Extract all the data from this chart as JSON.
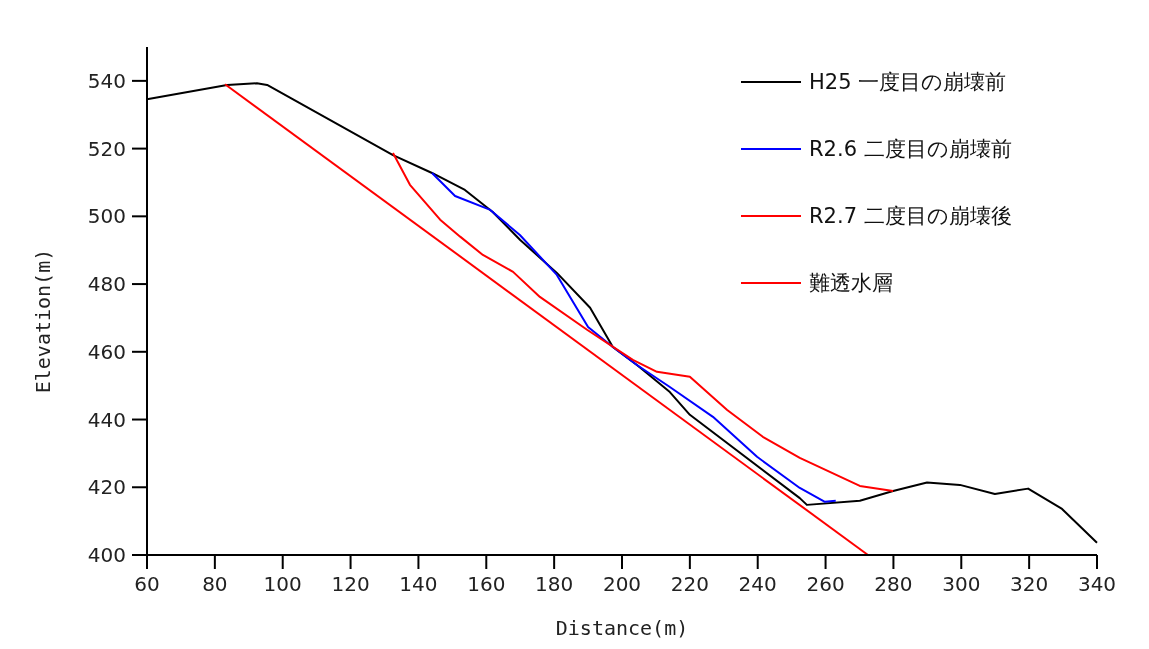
{
  "chart_data": {
    "type": "line",
    "xlabel": "Distance(m)",
    "ylabel": "Elevation(m)",
    "xlim": [
      60,
      340
    ],
    "ylim": [
      400,
      550
    ],
    "xticks": [
      60,
      80,
      100,
      120,
      140,
      160,
      180,
      200,
      220,
      240,
      260,
      280,
      300,
      320,
      340
    ],
    "yticks": [
      400,
      420,
      440,
      460,
      480,
      500,
      520,
      540
    ],
    "legend": "top right",
    "grid": false,
    "marker": "none",
    "series": [
      {
        "name": "H25  一度目の崩壊前",
        "color": "#000000",
        "x": [
          60,
          83.6,
          92.4,
          95.4,
          132.5,
          144,
          153.7,
          161.9,
          170,
          180.8,
          190.6,
          197.3,
          204.4,
          214.1,
          220,
          252.4,
          254.5,
          270.1,
          279.9,
          289.9,
          299.6,
          309.9,
          319.7,
          329.7,
          340
        ],
        "values": [
          534.6,
          538.8,
          539.3,
          538.8,
          518.1,
          512.8,
          507.8,
          501.3,
          493,
          483.3,
          473,
          461.4,
          456.1,
          448.1,
          441.4,
          416.8,
          414.8,
          416,
          418.9,
          421.4,
          420.7,
          418,
          419.6,
          413.6,
          403.6
        ]
      },
      {
        "name": "R2.6  二度目の崩壊前",
        "color": "#0000ff",
        "x": [
          144,
          150.8,
          161,
          169.9,
          180.8,
          190,
          197.3,
          204.4,
          214.1,
          226.8,
          239.8,
          252.4,
          259.8,
          263
        ],
        "values": [
          512.8,
          506,
          502,
          494.5,
          482.7,
          467.3,
          461.4,
          456.1,
          449.6,
          440.8,
          429,
          419.8,
          415.7,
          416
        ]
      },
      {
        "name": "R2.7  二度目の崩壊後",
        "color": "#ff0000",
        "x": [
          132.5,
          137.5,
          146.4,
          152.3,
          159,
          167.9,
          175.8,
          189.7,
          203.2,
          210.3,
          220,
          231,
          241.5,
          252.4,
          270.1,
          279.9
        ],
        "values": [
          518.7,
          509.3,
          499,
          494,
          488.6,
          483.6,
          476.2,
          466.5,
          457.6,
          454.1,
          452.6,
          442.8,
          434.9,
          428.7,
          420.4,
          418.9
        ]
      },
      {
        "name": "難透水層",
        "color": "#ff0000",
        "x": [
          83,
          272.5
        ],
        "values": [
          539,
          400
        ]
      }
    ]
  }
}
